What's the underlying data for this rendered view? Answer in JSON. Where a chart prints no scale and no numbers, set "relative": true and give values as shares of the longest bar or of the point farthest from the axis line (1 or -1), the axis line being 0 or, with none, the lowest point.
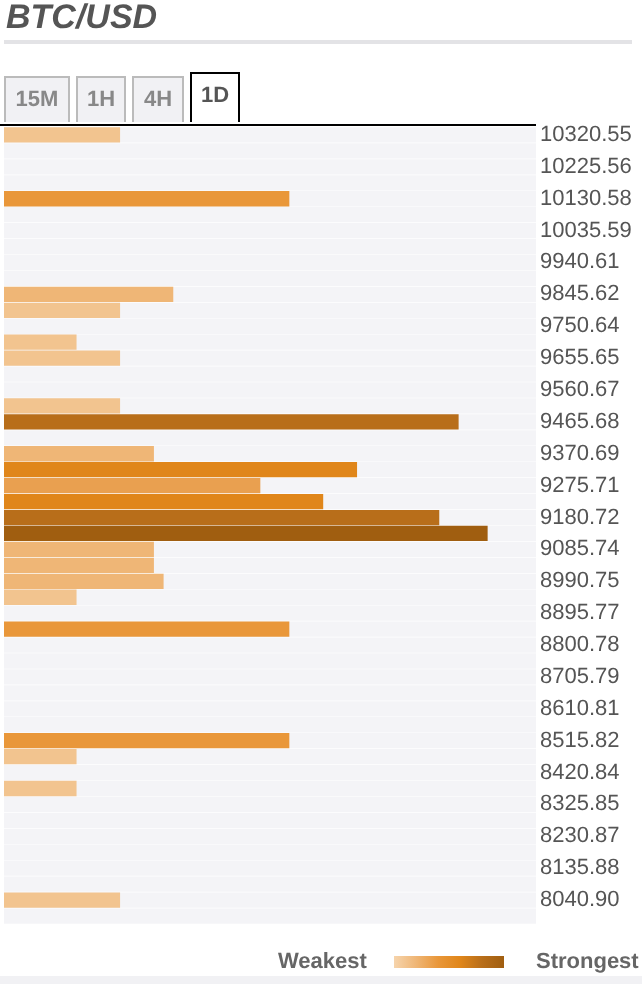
{
  "chart_data": {
    "type": "bar",
    "orientation": "horizontal",
    "relative": true,
    "title": "BTC/USD",
    "annotations": [
      "15M",
      "1H",
      "4H",
      "1D",
      "Weakest",
      "Strongest"
    ],
    "categories": [
      "10320.55",
      null,
      "10225.56",
      null,
      "10130.58",
      null,
      "10035.59",
      null,
      "9940.61",
      null,
      "9845.62",
      null,
      "9750.64",
      null,
      "9655.65",
      null,
      "9560.67",
      null,
      "9465.68",
      null,
      "9370.69",
      null,
      "9275.71",
      null,
      "9180.72",
      null,
      "9085.74",
      null,
      "8990.75",
      null,
      "8895.77",
      null,
      "8800.78",
      null,
      "8705.79",
      null,
      "8610.81",
      null,
      "8515.82",
      null,
      "8420.84",
      null,
      "8325.85",
      null,
      "8230.87",
      null,
      "8135.88",
      null,
      "8040.90",
      null
    ],
    "values": [
      0.24,
      0,
      0,
      0,
      0.59,
      0,
      0,
      0,
      0,
      0,
      0.35,
      0.24,
      0,
      0.15,
      0.24,
      0,
      0,
      0.24,
      0.94,
      0,
      0.31,
      0.73,
      0.53,
      0.66,
      0.9,
      1,
      0.31,
      0.31,
      0.33,
      0.15,
      0,
      0.59,
      0,
      0,
      0,
      0,
      0,
      0,
      0.59,
      0.15,
      0,
      0.15,
      0,
      0,
      0,
      0,
      0,
      0,
      0.24,
      0
    ],
    "colors": [
      "#f2c48f",
      "#f2c48f",
      "#f2c48f",
      "#f2c48f",
      "#e9973a",
      "#f2c48f",
      "#f2c48f",
      "#f2c48f",
      "#f2c48f",
      "#f2c48f",
      "#efb676",
      "#f2c48f",
      "#f2c48f",
      "#f2c48f",
      "#f2c48f",
      "#f2c48f",
      "#f2c48f",
      "#f2c48f",
      "#b86e1a",
      "#f2c48f",
      "#efb676",
      "#e0861a",
      "#e9a050",
      "#e0861a",
      "#b86e1a",
      "#a05e10",
      "#efb676",
      "#efb676",
      "#efb676",
      "#f2c48f",
      "#f2c48f",
      "#e9973a",
      "#f2c48f",
      "#f2c48f",
      "#f2c48f",
      "#f2c48f",
      "#f2c48f",
      "#f2c48f",
      "#e9973a",
      "#f2c48f",
      "#f2c48f",
      "#f2c48f",
      "#f2c48f",
      "#f2c48f",
      "#f2c48f",
      "#f2c48f",
      "#f2c48f",
      "#f2c48f",
      "#f2c48f",
      "#f2c48f"
    ]
  }
}
